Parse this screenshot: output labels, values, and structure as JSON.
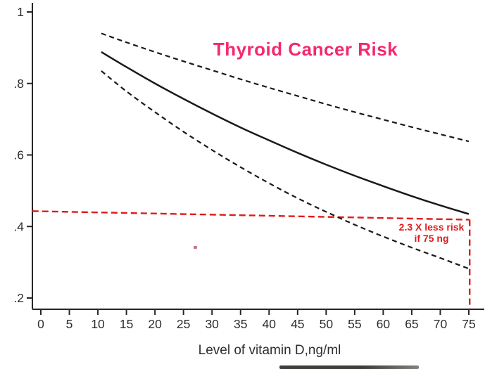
{
  "chart": {
    "title": "Thyroid Cancer Risk",
    "xlabel": "Level of vitamin D,ng/ml",
    "annotation_line1": "2.3 X less risk",
    "annotation_line2": "if 75 ng"
  },
  "colors": {
    "title_pink": "#F4296B",
    "annotation_red": "#DF1B1B",
    "curve_black": "#1a1a1a",
    "axis_black": "#262626",
    "tick_text": "#2e2e2e"
  },
  "chart_data": {
    "type": "line",
    "title": "Thyroid Cancer Risk",
    "xlabel": "Level of vitamin D,ng/ml",
    "ylabel": "",
    "grid": false,
    "legend": "none",
    "xlim": [
      -1.5,
      77.7
    ],
    "ylim": [
      0.168,
      1.026
    ],
    "x_ticks": [
      0,
      5,
      10,
      15,
      20,
      25,
      30,
      35,
      40,
      45,
      50,
      55,
      60,
      65,
      70,
      75
    ],
    "y_ticks": [
      1,
      0.8,
      0.6,
      0.4,
      0.2
    ],
    "y_tick_labels": [
      "1",
      ".8",
      ".6",
      ".4",
      ".2"
    ],
    "x": [
      10.6,
      15,
      20,
      25,
      30,
      35,
      40,
      45,
      50,
      55,
      60,
      65,
      70,
      75
    ],
    "series": [
      {
        "name": "thyroid-cancer-risk-estimate",
        "style": "solid",
        "color": "#1a1a1a",
        "values": [
          0.888,
          0.846,
          0.8,
          0.757,
          0.716,
          0.677,
          0.641,
          0.606,
          0.573,
          0.542,
          0.513,
          0.485,
          0.459,
          0.435
        ]
      },
      {
        "name": "upper-confidence-band",
        "style": "dashed",
        "color": "#1a1a1a",
        "values": [
          0.94,
          0.915,
          0.888,
          0.862,
          0.837,
          0.812,
          0.788,
          0.765,
          0.742,
          0.72,
          0.699,
          0.678,
          0.658,
          0.638
        ]
      },
      {
        "name": "lower-confidence-band",
        "style": "dashed",
        "color": "#1a1a1a",
        "values": [
          0.835,
          0.778,
          0.72,
          0.665,
          0.614,
          0.566,
          0.521,
          0.479,
          0.441,
          0.405,
          0.372,
          0.341,
          0.312,
          0.282
        ]
      }
    ],
    "reference_lines": [
      {
        "name": "risk-level-at-75ng",
        "orientation": "horizontal",
        "style": "dashed",
        "color": "#DF1B1B",
        "x": [
          -1.5,
          75.15
        ],
        "y": [
          0.443,
          0.419
        ]
      },
      {
        "name": "vitamin-d-75-marker",
        "orientation": "vertical",
        "style": "dashed",
        "color": "#DF1B1B",
        "x": [
          75.15,
          75.15
        ],
        "y": [
          0.419,
          0.168
        ]
      }
    ],
    "annotation": {
      "text": [
        "2.3 X less risk",
        "if 75 ng"
      ],
      "color": "#DF1B1B",
      "near_x": 68,
      "near_y": 0.4
    }
  }
}
